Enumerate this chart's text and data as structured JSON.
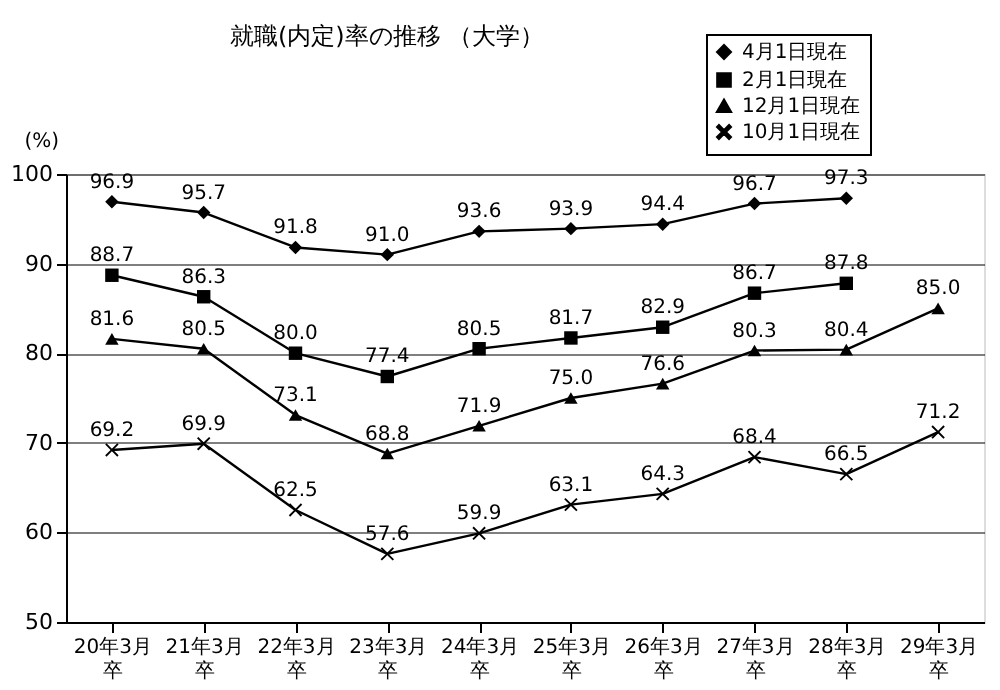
{
  "chart_data": {
    "type": "line",
    "title": "就職(内定)率の推移 （大学）",
    "ylabel": "(%)",
    "categories": [
      "20年3月卒",
      "21年3月卒",
      "22年3月卒",
      "23年3月卒",
      "24年3月卒",
      "25年3月卒",
      "26年3月卒",
      "27年3月卒",
      "28年3月卒",
      "29年3月卒"
    ],
    "series": [
      {
        "name": "4月1日現在",
        "color": "#000000",
        "marker": "diamond",
        "values": [
          96.9,
          95.7,
          91.8,
          91.0,
          93.6,
          93.9,
          94.4,
          96.7,
          97.3,
          null
        ],
        "value_labels": [
          "96.9",
          "95.7",
          "91.8",
          "91.0",
          "93.6",
          "93.9",
          "94.4",
          "96.7",
          "97.3",
          null
        ]
      },
      {
        "name": "2月1日現在",
        "color": "#000000",
        "marker": "square",
        "values": [
          88.7,
          86.3,
          80.0,
          77.4,
          80.5,
          81.7,
          82.9,
          86.7,
          87.8,
          null
        ],
        "value_labels": [
          "88.7",
          "86.3",
          "80.0",
          "77.4",
          "80.5",
          "81.7",
          "82.9",
          "86.7",
          "87.8",
          null
        ]
      },
      {
        "name": "12月1日現在",
        "color": "#000000",
        "marker": "triangle",
        "values": [
          81.6,
          80.5,
          73.1,
          68.8,
          71.9,
          75.0,
          76.6,
          80.3,
          80.4,
          85.0
        ],
        "value_labels": [
          "81.6",
          "80.5",
          "73.1",
          "68.8",
          "71.9",
          "75.0",
          "76.6",
          "80.3",
          "80.4",
          "85.0"
        ]
      },
      {
        "name": "10月1日現在",
        "color": "#000000",
        "marker": "cross",
        "values": [
          69.2,
          69.9,
          62.5,
          57.6,
          59.9,
          63.1,
          64.3,
          68.4,
          66.5,
          71.2
        ],
        "value_labels": [
          "69.2",
          "69.9",
          "62.5",
          "57.6",
          "59.9",
          "63.1",
          "64.3",
          "68.4",
          "66.5",
          "71.2"
        ]
      }
    ],
    "ylim": [
      50,
      100
    ],
    "yticks": [
      50,
      60,
      70,
      80,
      90,
      100
    ],
    "grid": "y",
    "legend": "top right",
    "line_style": "solid"
  }
}
